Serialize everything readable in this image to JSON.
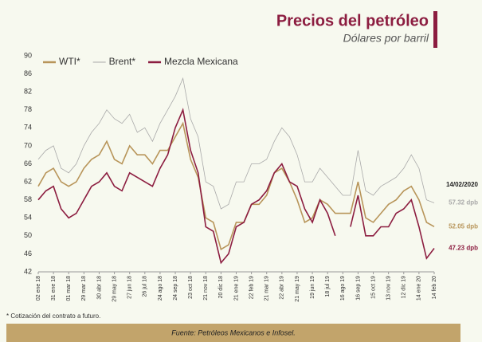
{
  "chart_data": {
    "type": "line",
    "title": "Precios del petróleo",
    "subtitle": "Dólares por barril",
    "categories": [
      "02 ene 18",
      null,
      "31 ene 18",
      null,
      "01 mar 18",
      null,
      "29 mar 18",
      null,
      "30 abr 18",
      null,
      "29 may 18",
      null,
      "27 jun 18",
      null,
      "26 jul 18",
      null,
      "24 ago 18",
      null,
      "24 sep 18",
      null,
      "23 oct 18",
      null,
      "21 nov 18",
      null,
      "20 dic 18",
      null,
      "21 ene 19",
      null,
      "22 feb 19",
      null,
      "21 mar 19",
      null,
      "22 abr 19",
      null,
      "21 may 19",
      null,
      "19 jun 19",
      null,
      "18 jul 19",
      null,
      "16 ago 19",
      null,
      "16 sep 19",
      null,
      "15 oct 19",
      null,
      "13 nov 19",
      null,
      "12 dic 19",
      null,
      "14 ene 20",
      null,
      "14 feb 20"
    ],
    "series": [
      {
        "name": "WTI*",
        "color": "#b8955a",
        "end_label": "52.05 dpb",
        "values": [
          61,
          64,
          65,
          62,
          61,
          62,
          65,
          67,
          68,
          71,
          67,
          66,
          70,
          68,
          68,
          66,
          69,
          69,
          72,
          75,
          67,
          63,
          54,
          53,
          47,
          48,
          53,
          53,
          57,
          57,
          59,
          64,
          65,
          62,
          58,
          53,
          54,
          58,
          57,
          55,
          55,
          55,
          62,
          54,
          53,
          55,
          57,
          58,
          60,
          61,
          58,
          53,
          52.05
        ]
      },
      {
        "name": "Brent*",
        "color": "#a9a9a9",
        "end_label": "57.32 dpb",
        "values": [
          67,
          69,
          70,
          65,
          64,
          66,
          70,
          73,
          75,
          78,
          76,
          75,
          77,
          73,
          74,
          71,
          75,
          78,
          81,
          85,
          76,
          72,
          62,
          61,
          56,
          57,
          62,
          62,
          66,
          66,
          67,
          71,
          74,
          72,
          68,
          62,
          62,
          65,
          63,
          61,
          59,
          59,
          69,
          60,
          59,
          61,
          62,
          63,
          65,
          68,
          65,
          58,
          57.32
        ]
      },
      {
        "name": "Mezcla Mexicana",
        "color": "#8c1d40",
        "end_label": "47.23 dpb",
        "values": [
          58,
          60,
          61,
          56,
          54,
          55,
          58,
          61,
          62,
          64,
          61,
          60,
          64,
          63,
          62,
          61,
          65,
          68,
          74,
          78,
          69,
          64,
          52,
          51,
          44,
          46,
          52,
          53,
          57,
          58,
          60,
          64,
          66,
          62,
          61,
          56,
          53,
          58,
          55,
          50,
          null,
          52,
          59,
          50,
          50,
          52,
          52,
          55,
          56,
          58,
          52,
          45,
          47.23
        ]
      }
    ],
    "end_date": "14/02/2020",
    "ylim": [
      42,
      90
    ],
    "yticks": [
      42,
      46,
      50,
      54,
      58,
      62,
      66,
      70,
      74,
      78,
      82,
      86,
      90
    ],
    "grid": false,
    "legend": "top",
    "footnote": "* Cotización del contrato a futuro.",
    "source": "Fuente: Petróleos Mexicanos e Infosel."
  }
}
